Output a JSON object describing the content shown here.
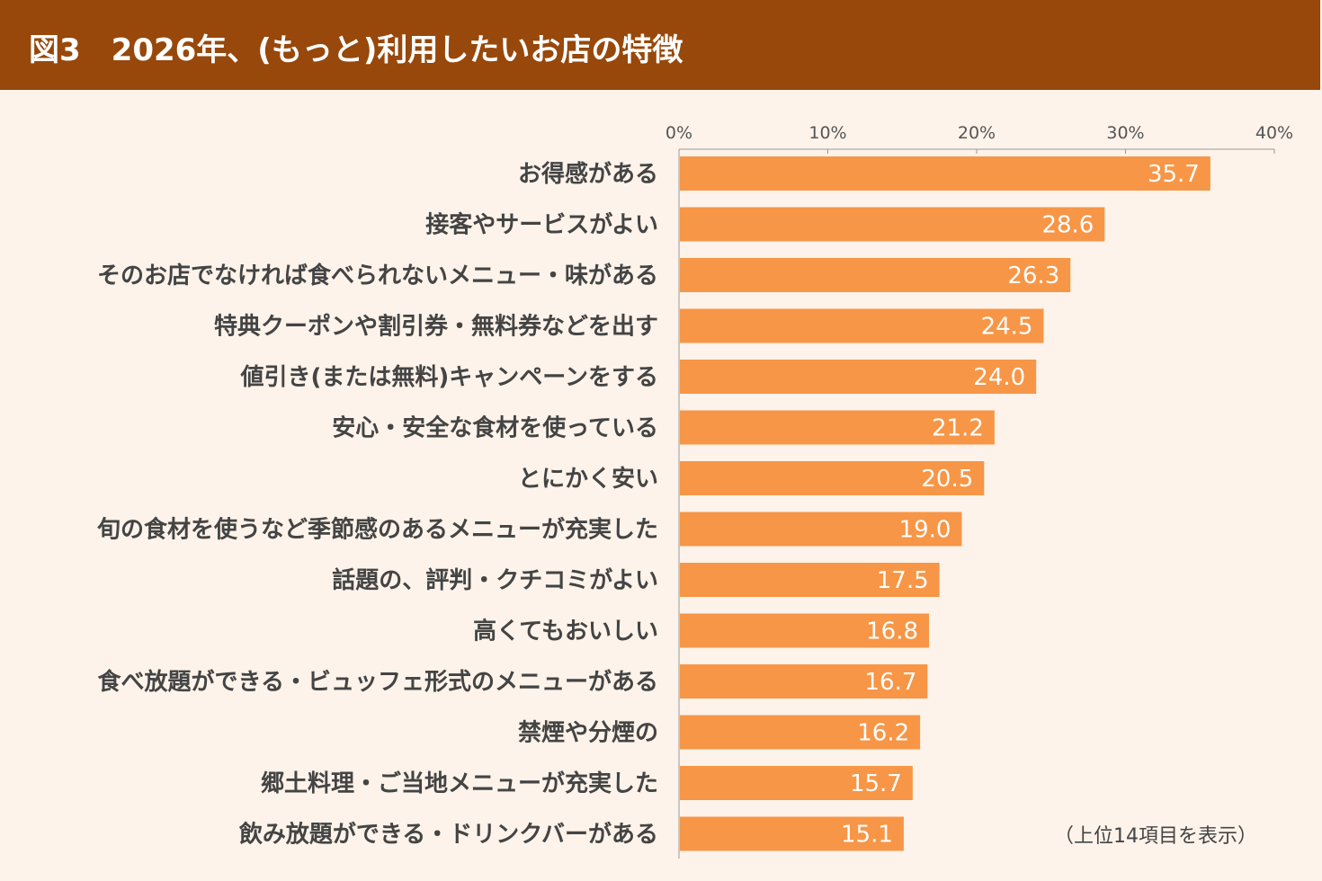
{
  "header": {
    "title": "図3　2026年、(もっと)利用したいお店の特徴"
  },
  "note": "（上位14項目を表示）",
  "chart_data": {
    "type": "bar",
    "orientation": "horizontal",
    "title": "図3　2026年、(もっと)利用したいお店の特徴",
    "categories": [
      "お得感がある",
      "接客やサービスがよい",
      "そのお店でなければ食べられないメニュー・味がある",
      "特典クーポンや割引券・無料券などを出す",
      "値引き(または無料)キャンペーンをする",
      "安心・安全な食材を使っている",
      "とにかく安い",
      "旬の食材を使うなど季節感のあるメニューが充実した",
      "話題の、評判・クチコミがよい",
      "高くてもおいしい",
      "食べ放題ができる・ビュッフェ形式のメニューがある",
      "禁煙や分煙の",
      "郷土料理・ご当地メニューが充実した",
      "飲み放題ができる・ドリンクバーがある"
    ],
    "values": [
      35.7,
      28.6,
      26.3,
      24.5,
      24.0,
      21.2,
      20.5,
      19.0,
      17.5,
      16.8,
      16.7,
      16.2,
      15.7,
      15.1
    ],
    "value_labels": [
      "35.7",
      "28.6",
      "26.3",
      "24.5",
      "24.0",
      "21.2",
      "20.5",
      "19.0",
      "17.5",
      "16.8",
      "16.7",
      "16.2",
      "15.7",
      "15.1"
    ],
    "xlim": [
      0,
      40
    ],
    "x_ticks": [
      "0%",
      "10%",
      "20%",
      "30%",
      "40%"
    ],
    "axis_position": "top",
    "grid": false,
    "colors": {
      "bar": "#f79646",
      "header": "#97480a",
      "background": "#fdf3ea"
    }
  }
}
